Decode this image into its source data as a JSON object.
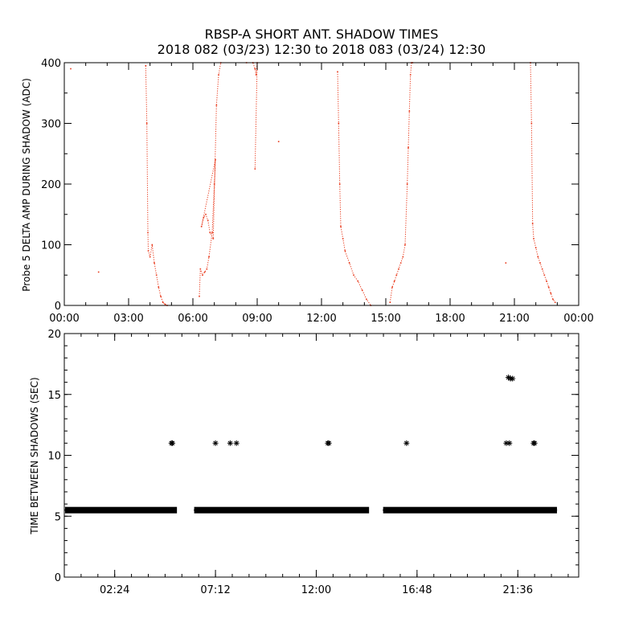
{
  "chart_data": [
    {
      "type": "scatter",
      "title_line1": "RBSP-A SHORT ANT. SHADOW TIMES",
      "title_line2": "2018 082 (03/23) 12:30 to 2018 083 (03/24) 12:30",
      "ylabel": "Probe 5 DELTA AMP DURING SHADOW (ADC)",
      "xlabel": "",
      "xlim": [
        0,
        24
      ],
      "ylim": [
        0,
        400
      ],
      "x_ticks": [
        0,
        3,
        6,
        9,
        12,
        15,
        18,
        21,
        24
      ],
      "x_tick_labels": [
        "00:00",
        "03:00",
        "06:00",
        "09:00",
        "12:00",
        "15:00",
        "18:00",
        "21:00",
        "00:00"
      ],
      "y_ticks": [
        0,
        100,
        200,
        300,
        400
      ],
      "y_tick_labels": [
        "0",
        "100",
        "200",
        "300",
        "400"
      ],
      "color": "#e8381a",
      "series": [
        {
          "x": [
            0.3,
            1.6,
            3.8,
            3.85,
            3.9,
            3.92,
            4.0,
            4.1,
            4.2,
            4.3,
            4.4,
            4.5,
            4.6,
            4.7,
            4.8,
            6.3,
            6.35,
            6.45,
            6.55,
            6.65,
            6.75,
            6.9,
            7.0,
            7.05,
            6.4,
            6.5,
            6.6,
            6.7,
            6.8,
            6.95,
            7.1,
            7.2,
            7.3,
            8.5,
            8.8,
            8.9,
            8.95,
            9.0,
            8.9,
            10.0,
            12.75,
            12.8,
            12.85,
            12.9,
            13.0,
            13.1,
            13.3,
            13.5,
            13.7,
            13.9,
            14.1,
            14.3,
            15.2,
            15.3,
            15.4,
            15.5,
            15.6,
            15.7,
            15.8,
            15.9,
            16.0,
            16.05,
            16.1,
            16.15,
            16.2,
            16.25,
            20.6,
            21.75,
            21.8,
            21.85,
            21.9,
            22.0,
            22.1,
            22.2,
            22.3,
            22.4,
            22.5,
            22.6,
            22.7,
            22.8,
            22.9
          ],
          "y": [
            390,
            55,
            395,
            300,
            120,
            90,
            80,
            100,
            70,
            50,
            30,
            15,
            5,
            2,
            0,
            15,
            60,
            50,
            55,
            60,
            80,
            120,
            200,
            240,
            130,
            145,
            150,
            140,
            120,
            110,
            330,
            380,
            400,
            400,
            400,
            390,
            380,
            400,
            225,
            270,
            385,
            300,
            200,
            130,
            110,
            90,
            70,
            50,
            40,
            25,
            10,
            0,
            5,
            30,
            40,
            50,
            60,
            70,
            80,
            100,
            200,
            260,
            320,
            380,
            400,
            400,
            70,
            400,
            300,
            135,
            110,
            95,
            80,
            70,
            60,
            50,
            40,
            30,
            20,
            10,
            5
          ]
        }
      ]
    },
    {
      "type": "scatter",
      "ylabel": "TIME BETWEEN SHADOWS (SEC)",
      "xlabel": "",
      "xlim": [
        0,
        24.5
      ],
      "ylim": [
        0,
        20
      ],
      "x_ticks": [
        2.4,
        7.2,
        12.0,
        16.8,
        21.6
      ],
      "x_tick_labels": [
        "02:24",
        "07:12",
        "12:00",
        "16:48",
        "21:36"
      ],
      "y_ticks": [
        0,
        5,
        10,
        15,
        20
      ],
      "y_tick_labels": [
        "0",
        "5",
        "10",
        "15",
        "20"
      ],
      "marker": "asterisk",
      "color": "#000000",
      "baseline_segments": [
        {
          "x_start": 0.15,
          "x_end": 5.25,
          "y": 5.5
        },
        {
          "x_start": 6.3,
          "x_end": 14.4,
          "y": 5.5
        },
        {
          "x_start": 15.3,
          "x_end": 23.35,
          "y": 5.5
        }
      ],
      "series": [
        {
          "x": [
            5.1,
            5.15,
            7.2,
            7.9,
            8.2,
            12.55,
            12.6,
            16.3,
            21.05,
            21.15,
            21.2,
            21.25,
            21.35,
            22.35,
            22.4
          ],
          "y": [
            11,
            11,
            11,
            11,
            11,
            11,
            11,
            11,
            11,
            16.4,
            11,
            16.3,
            16.3,
            11,
            11
          ]
        }
      ]
    }
  ]
}
